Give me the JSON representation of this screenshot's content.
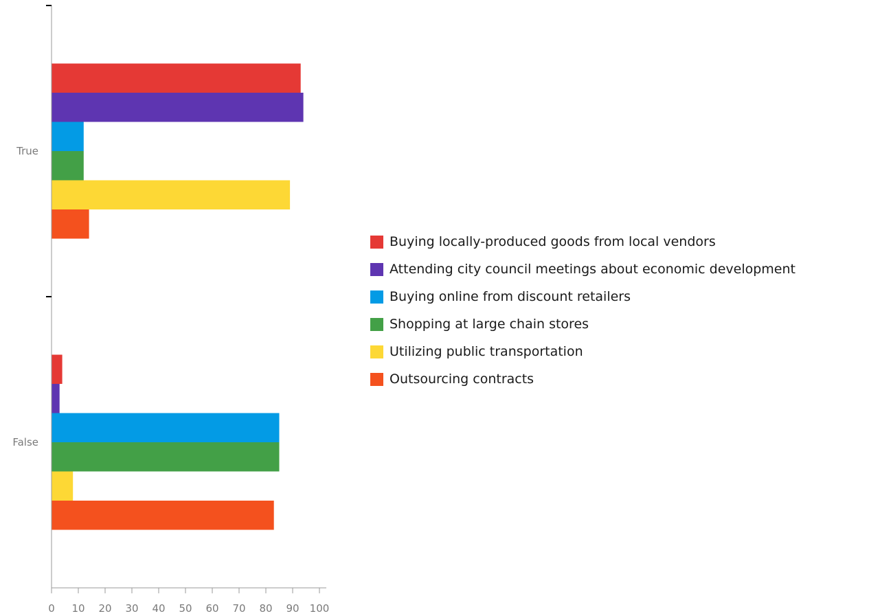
{
  "chart_data": {
    "type": "bar",
    "orientation": "horizontal",
    "categories": [
      "True",
      "False"
    ],
    "series": [
      {
        "name": "Buying locally-produced goods from local vendors",
        "values": [
          93,
          4
        ],
        "color": "#e53935"
      },
      {
        "name": "Attending city council meetings about economic development",
        "values": [
          94,
          3
        ],
        "color": "#5e35b1"
      },
      {
        "name": "Buying online from discount retailers",
        "values": [
          12,
          85
        ],
        "color": "#039be5"
      },
      {
        "name": "Shopping at large chain stores",
        "values": [
          12,
          85
        ],
        "color": "#43a047"
      },
      {
        "name": "Utilizing public transportation",
        "values": [
          89,
          8
        ],
        "color": "#fdd835"
      },
      {
        "name": "Outsourcing contracts",
        "values": [
          14,
          83
        ],
        "color": "#f4511e"
      }
    ],
    "xlim": [
      0,
      100
    ],
    "xticks": [
      0,
      10,
      20,
      30,
      40,
      50,
      60,
      70,
      80,
      90,
      100
    ],
    "grid": false,
    "legend_position": "right"
  }
}
